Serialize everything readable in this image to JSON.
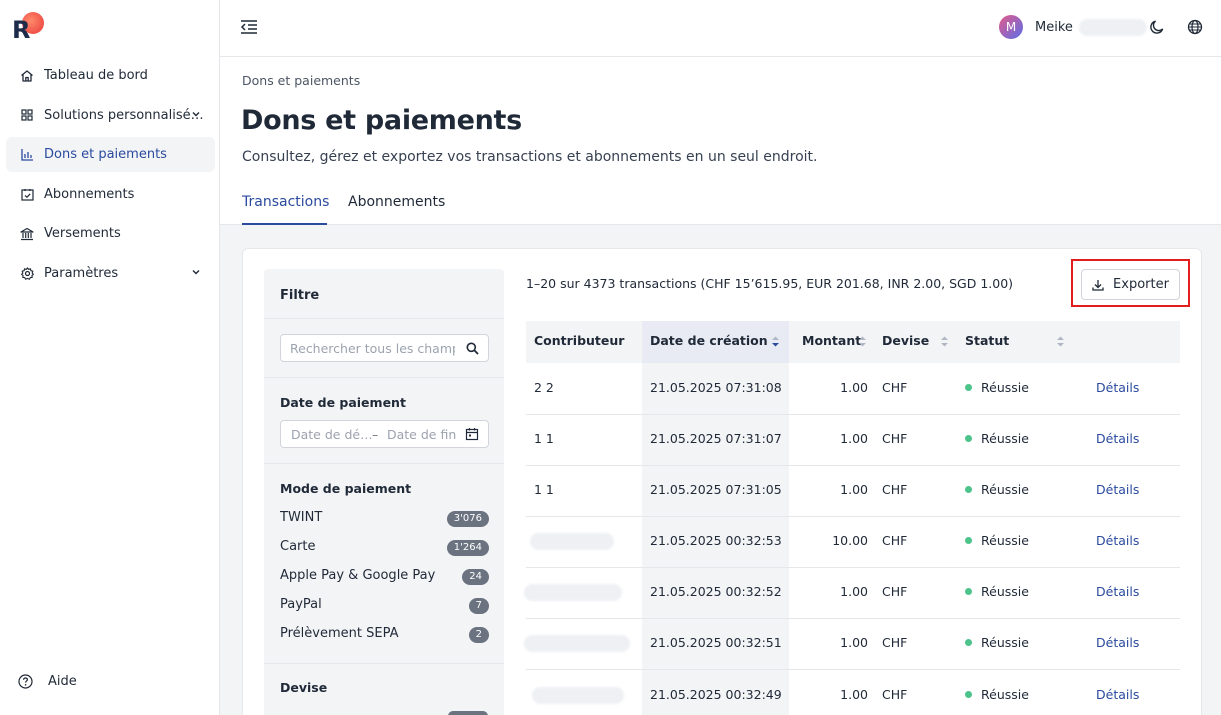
{
  "app": {
    "logo_letter": "R"
  },
  "sidebar": {
    "items": [
      {
        "label": "Tableau de bord",
        "icon": "home-icon"
      },
      {
        "label": "Solutions personnalisé…",
        "icon": "grid-icon",
        "expandable": true
      },
      {
        "label": "Dons et paiements",
        "icon": "chart-icon",
        "active": true
      },
      {
        "label": "Abonnements",
        "icon": "calendar-check-icon"
      },
      {
        "label": "Versements",
        "icon": "bank-icon"
      },
      {
        "label": "Paramètres",
        "icon": "gear-icon",
        "expandable": true
      }
    ],
    "help_label": "Aide"
  },
  "topbar": {
    "avatar_initial": "M",
    "user_name": "Meike"
  },
  "header": {
    "breadcrumb": "Dons et paiements",
    "title": "Dons et paiements",
    "subtitle": "Consultez, gérez et exportez vos transactions et abonnements en un seul endroit.",
    "tabs": [
      {
        "label": "Transactions",
        "active": true
      },
      {
        "label": "Abonnements",
        "active": false
      }
    ]
  },
  "filter": {
    "title": "Filtre",
    "search_placeholder": "Rechercher tous les champs",
    "date_label": "Date de paiement",
    "date_start_placeholder": "Date de dé…",
    "date_separator": "–",
    "date_end_placeholder": "Date de fin",
    "payment_method_label": "Mode de paiement",
    "payment_methods": [
      {
        "label": "TWINT",
        "count": "3'076"
      },
      {
        "label": "Carte",
        "count": "1'264"
      },
      {
        "label": "Apple Pay & Google Pay",
        "count": "24"
      },
      {
        "label": "PayPal",
        "count": "7"
      },
      {
        "label": "Prélèvement SEPA",
        "count": "2"
      }
    ],
    "currency_label": "Devise"
  },
  "summary": "1–20 sur 4373 transactions (CHF 15’615.95, EUR 201.68, INR 2.00, SGD 1.00)",
  "export_label": "Exporter",
  "table": {
    "columns": [
      "Contributeur",
      "Date de création",
      "Montant",
      "Devise",
      "Statut"
    ],
    "rows": [
      {
        "contributor": "2 2",
        "date": "21.05.2025 07:31:08",
        "amount": "1.00",
        "currency": "CHF",
        "status": "Réussie",
        "action": "Détails"
      },
      {
        "contributor": "1 1",
        "date": "21.05.2025 07:31:07",
        "amount": "1.00",
        "currency": "CHF",
        "status": "Réussie",
        "action": "Détails"
      },
      {
        "contributor": "1 1",
        "date": "21.05.2025 07:31:05",
        "amount": "1.00",
        "currency": "CHF",
        "status": "Réussie",
        "action": "Détails"
      },
      {
        "contributor": "",
        "date": "21.05.2025 00:32:53",
        "amount": "10.00",
        "currency": "CHF",
        "status": "Réussie",
        "action": "Détails"
      },
      {
        "contributor": "",
        "date": "21.05.2025 00:32:52",
        "amount": "1.00",
        "currency": "CHF",
        "status": "Réussie",
        "action": "Détails"
      },
      {
        "contributor": "",
        "date": "21.05.2025 00:32:51",
        "amount": "1.00",
        "currency": "CHF",
        "status": "Réussie",
        "action": "Détails"
      },
      {
        "contributor": "",
        "date": "21.05.2025 00:32:49",
        "amount": "1.00",
        "currency": "CHF",
        "status": "Réussie",
        "action": "Détails"
      }
    ]
  },
  "colors": {
    "accent": "#2a4a9e",
    "success": "#4cc38a",
    "highlight": "#e11d1d"
  }
}
